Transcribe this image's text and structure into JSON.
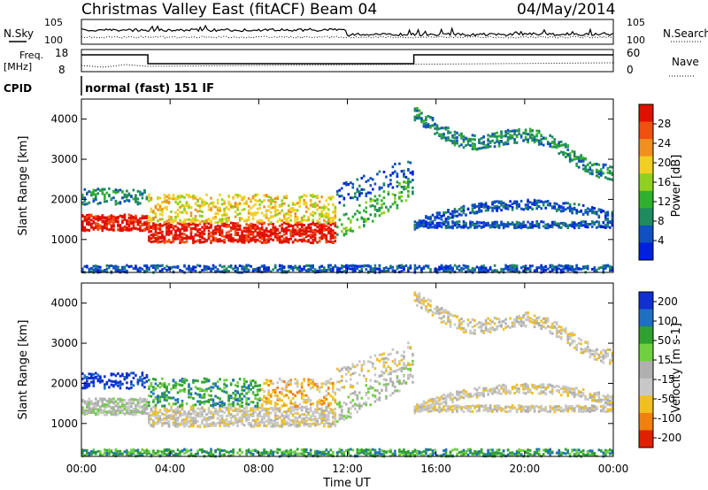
{
  "header": {
    "title": "Christmas Valley East (fitACF)",
    "beam": "Beam 04",
    "date": "04/May/2014"
  },
  "labels": {
    "n_sky": "N.Sky",
    "n_search": "N.Search",
    "freq": "Freq.",
    "freq_unit": "[MHz]",
    "nave": "Nave",
    "cpid": "CPID",
    "cpid_value": "normal (fast) 151 IF"
  },
  "noise_axis": {
    "top": "10^5",
    "bottom": "10^0"
  },
  "freq_axis_left": {
    "top": "18",
    "bottom": "8"
  },
  "freq_axis_right": {
    "top": "60",
    "bottom": "0"
  },
  "colors": {
    "power_scale": [
      "#0020e0",
      "#1050c0",
      "#208a60",
      "#30b030",
      "#90d020",
      "#f0d020",
      "#f09020",
      "#f05010",
      "#e01000"
    ],
    "velocity_scale": [
      "#1030d0",
      "#2070c0",
      "#30a030",
      "#70d040",
      "#b0b0b0",
      "#c8c8c8",
      "#f0c020",
      "#f08010",
      "#e02000"
    ],
    "ground_scatter": "#b8b8b8"
  },
  "chart_data": [
    {
      "type": "heatmap",
      "title": "Power",
      "ylabel": "Slant Range [km]",
      "xlabel": "Time UT",
      "x_ticks": [
        "00:00",
        "04:00",
        "08:00",
        "12:00",
        "16:00",
        "20:00",
        "00:00"
      ],
      "y_ticks": [
        "1000",
        "2000",
        "3000",
        "4000"
      ],
      "ylim": [
        180,
        4500
      ],
      "colorbar": {
        "label": "Power [dB]",
        "ticks": [
          "4",
          "8",
          "12",
          "16",
          "20",
          "24",
          "28"
        ],
        "range": [
          0,
          30
        ]
      }
    },
    {
      "type": "heatmap",
      "title": "Velocity",
      "ylabel": "Slant Range [km]",
      "xlabel": "Time UT",
      "x_ticks": [
        "00:00",
        "04:00",
        "08:00",
        "12:00",
        "16:00",
        "20:00",
        "00:00"
      ],
      "y_ticks": [
        "1000",
        "2000",
        "3000",
        "4000"
      ],
      "ylim": [
        180,
        4500
      ],
      "colorbar": {
        "label": "Velocity [m s-1]",
        "ticks": [
          "200",
          "100",
          "50",
          "15",
          "-15",
          "-50",
          "-100",
          "-200"
        ],
        "range": [
          -250,
          250
        ]
      }
    }
  ]
}
